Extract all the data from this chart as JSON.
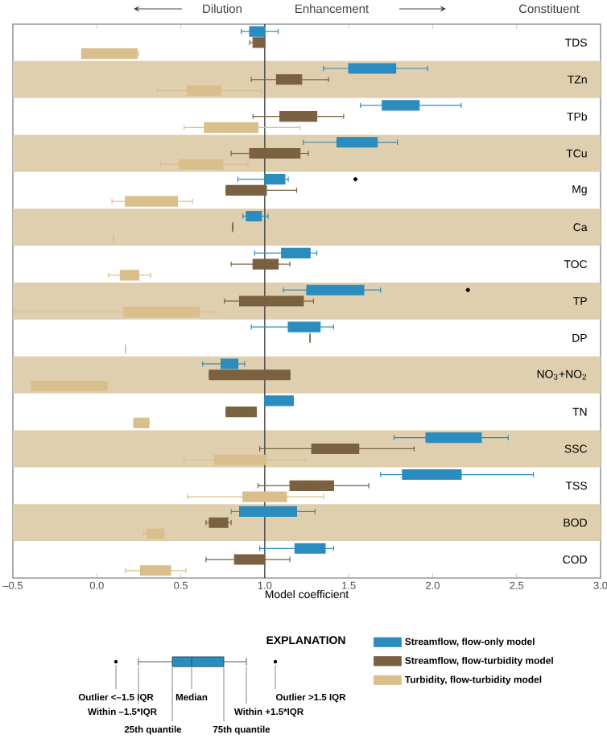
{
  "chart_data": {
    "type": "box",
    "orientation": "horizontal",
    "categories": [
      "TDS",
      "TZn",
      "TPb",
      "TCu",
      "Mg",
      "Ca",
      "TOC",
      "TP",
      "DP",
      "NO$_{3}$+NO$_{2}$",
      "TN",
      "SSC",
      "TSS",
      "BOD",
      "COD"
    ],
    "series": [
      {
        "name": "Streamflow, flow-only model",
        "color": "#2b8cbe",
        "boxes": [
          {
            "low": 0.86,
            "q1": 0.91,
            "median": 0.95,
            "q3": 1.0,
            "high": 1.08
          },
          {
            "low": 1.35,
            "q1": 1.5,
            "median": 1.65,
            "q3": 1.78,
            "high": 1.97
          },
          {
            "low": 1.57,
            "q1": 1.7,
            "median": 1.81,
            "q3": 1.92,
            "high": 2.17
          },
          {
            "low": 1.23,
            "q1": 1.43,
            "median": 1.55,
            "q3": 1.67,
            "high": 1.79
          },
          {
            "low": 0.84,
            "q1": 1.0,
            "median": 1.06,
            "q3": 1.12,
            "high": 1.14,
            "outliers": [
              1.54
            ]
          },
          {
            "low": 0.87,
            "q1": 0.89,
            "median": 0.94,
            "q3": 0.98,
            "high": 1.02
          },
          {
            "low": 0.94,
            "q1": 1.1,
            "median": 1.18,
            "q3": 1.27,
            "high": 1.31
          },
          {
            "low": 1.11,
            "q1": 1.25,
            "median": 1.4,
            "q3": 1.59,
            "high": 1.69,
            "outliers": [
              2.21
            ]
          },
          {
            "low": 0.92,
            "q1": 1.14,
            "median": 1.23,
            "q3": 1.33,
            "high": 1.41
          },
          {
            "low": 0.63,
            "q1": 0.74,
            "median": 0.79,
            "q3": 0.84,
            "high": 0.88
          },
          {
            "low": 1.0,
            "q1": 1.0,
            "median": 1.08,
            "q3": 1.17,
            "high": 1.17
          },
          {
            "low": 1.77,
            "q1": 1.96,
            "median": 2.12,
            "q3": 2.29,
            "high": 2.45
          },
          {
            "low": 1.69,
            "q1": 1.82,
            "median": 2.0,
            "q3": 2.17,
            "high": 2.6
          },
          {
            "low": 0.8,
            "q1": 0.85,
            "median": 1.02,
            "q3": 1.19,
            "high": 1.3
          },
          {
            "low": 0.97,
            "q1": 1.18,
            "median": 1.27,
            "q3": 1.36,
            "high": 1.41
          }
        ]
      },
      {
        "name": "Streamflow, flow-turbidity model",
        "color": "#7a6140",
        "boxes": [
          {
            "low": 0.91,
            "q1": 0.93,
            "median": 0.96,
            "q3": 1.0,
            "high": 1.0
          },
          {
            "low": 0.92,
            "q1": 1.07,
            "median": 1.15,
            "q3": 1.22,
            "high": 1.38
          },
          {
            "low": 0.93,
            "q1": 1.09,
            "median": 1.2,
            "q3": 1.31,
            "high": 1.47
          },
          {
            "low": 0.8,
            "q1": 0.91,
            "median": 1.06,
            "q3": 1.21,
            "high": 1.26
          },
          {
            "low": 0.77,
            "q1": 0.77,
            "median": 0.89,
            "q3": 1.01,
            "high": 1.19
          },
          {
            "low": 0.81,
            "q1": 0.81,
            "median": 0.81,
            "q3": 0.81,
            "high": 0.81
          },
          {
            "low": 0.8,
            "q1": 0.93,
            "median": 1.0,
            "q3": 1.08,
            "high": 1.15
          },
          {
            "low": 0.76,
            "q1": 0.85,
            "median": 1.0,
            "q3": 1.23,
            "high": 1.29
          },
          {
            "low": 1.27,
            "q1": 1.27,
            "median": 1.27,
            "q3": 1.27,
            "high": 1.27
          },
          {
            "low": 0.67,
            "q1": 0.67,
            "median": 0.9,
            "q3": 1.15,
            "high": 1.15
          },
          {
            "low": 0.77,
            "q1": 0.77,
            "median": 0.86,
            "q3": 0.95,
            "high": 0.95
          },
          {
            "low": 0.97,
            "q1": 1.28,
            "median": 1.42,
            "q3": 1.56,
            "high": 1.89
          },
          {
            "low": 0.96,
            "q1": 1.15,
            "median": 1.28,
            "q3": 1.41,
            "high": 1.62
          },
          {
            "low": 0.65,
            "q1": 0.67,
            "median": 0.73,
            "q3": 0.78,
            "high": 0.8
          },
          {
            "low": 0.65,
            "q1": 0.82,
            "median": 0.91,
            "q3": 1.0,
            "high": 1.15
          }
        ]
      },
      {
        "name": "Turbidity, flow-turbidity model",
        "color": "#d9bf8c",
        "boxes": [
          {
            "low": -0.09,
            "q1": -0.09,
            "median": 0.08,
            "q3": 0.24,
            "high": 0.25
          },
          {
            "low": 0.36,
            "q1": 0.54,
            "median": 0.64,
            "q3": 0.74,
            "high": 0.98
          },
          {
            "low": 0.52,
            "q1": 0.64,
            "median": 0.8,
            "q3": 0.96,
            "high": 1.21
          },
          {
            "low": 0.38,
            "q1": 0.49,
            "median": 0.62,
            "q3": 0.75,
            "high": 0.9
          },
          {
            "low": 0.09,
            "q1": 0.17,
            "median": 0.32,
            "q3": 0.48,
            "high": 0.57
          },
          {
            "low": 0.1,
            "q1": 0.1,
            "median": 0.1,
            "q3": 0.1,
            "high": 0.1
          },
          {
            "low": 0.07,
            "q1": 0.14,
            "median": 0.19,
            "q3": 0.25,
            "high": 0.32
          },
          {
            "low": -0.49,
            "q1": 0.16,
            "median": 0.35,
            "q3": 0.61,
            "high": 0.71
          },
          {
            "low": 0.17,
            "q1": 0.17,
            "median": 0.17,
            "q3": 0.17,
            "high": 0.17
          },
          {
            "low": -0.39,
            "q1": -0.39,
            "median": -0.17,
            "q3": 0.06,
            "high": 0.06
          },
          {
            "low": 0.22,
            "q1": 0.22,
            "median": 0.27,
            "q3": 0.31,
            "high": 0.31
          },
          {
            "low": 0.52,
            "q1": 0.7,
            "median": 0.86,
            "q3": 1.01,
            "high": 1.24
          },
          {
            "low": 0.54,
            "q1": 0.87,
            "median": 1.0,
            "q3": 1.13,
            "high": 1.35
          },
          {
            "low": 0.28,
            "q1": 0.3,
            "median": 0.35,
            "q3": 0.4,
            "high": 0.4
          },
          {
            "low": 0.17,
            "q1": 0.26,
            "median": 0.35,
            "q3": 0.44,
            "high": 0.53
          }
        ]
      }
    ],
    "xlim": [
      -0.5,
      3.0
    ],
    "xticks": [
      {
        "value": -0.5,
        "label": "–0.5"
      },
      {
        "value": 0,
        "label": "0.0"
      },
      {
        "value": 0.5,
        "label": "0.5"
      },
      {
        "value": 1,
        "label": "1.0"
      },
      {
        "value": 1.5,
        "label": "1.5"
      },
      {
        "value": 2,
        "label": "2.0"
      },
      {
        "value": 2.5,
        "label": "2.5"
      },
      {
        "value": 3,
        "label": "3.0"
      }
    ],
    "xlabel": "Model coefficient",
    "ref_lines": [
      {
        "axis": "x",
        "value": 1
      }
    ],
    "bands": [
      {
        "axis": "y",
        "from": "TZn",
        "to": "TZn",
        "color": "#e0cfae"
      },
      {
        "axis": "y",
        "from": "TCu",
        "to": "TCu",
        "color": "#e0cfae"
      },
      {
        "axis": "y",
        "from": "Ca",
        "to": "Ca",
        "color": "#e0cfae"
      },
      {
        "axis": "y",
        "from": "TP",
        "to": "TP",
        "color": "#e0cfae"
      },
      {
        "axis": "y",
        "from": "NO$_{3}$+NO$_{2}$",
        "to": "NO$_{3}$+NO$_{2}$",
        "color": "#e0cfae"
      },
      {
        "axis": "y",
        "from": "SSC",
        "to": "SSC",
        "color": "#e0cfae"
      },
      {
        "axis": "y",
        "from": "BOD",
        "to": "BOD",
        "color": "#e0cfae"
      }
    ],
    "legend": "bottom right",
    "annotations": [
      "Dilution",
      "Enhancement",
      "Constituent",
      "EXPLANATION",
      "Outlier <–1.5 IQR",
      "Within –1.5*IQR",
      "25th quantile",
      "Median",
      "75th quantile",
      "Within +1.5*IQR",
      "Outlier >1.5 IQR"
    ]
  }
}
